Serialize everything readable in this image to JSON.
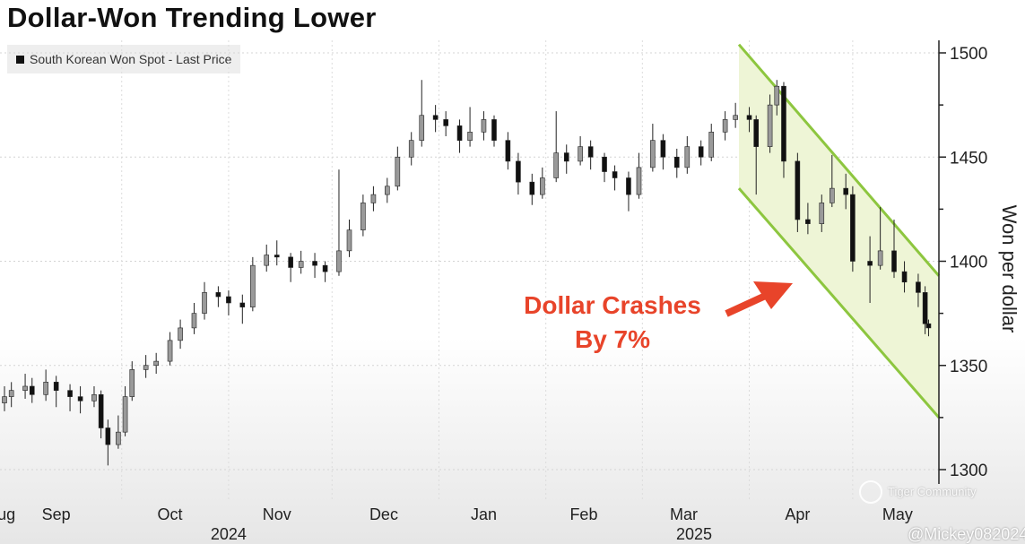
{
  "chart_data": {
    "type": "candlestick",
    "title": "Dollar-Won Trending Lower",
    "legend": [
      {
        "name": "South Korean Won Spot - Last Price",
        "color": "#111111"
      }
    ],
    "legend_placement": "top-left",
    "ylabel": "Won per dollar",
    "ylim": [
      1290,
      1505
    ],
    "yticks": [
      1300,
      1350,
      1400,
      1450,
      1500
    ],
    "xlim": [
      "2024-08-28",
      "2025-05-26"
    ],
    "grid": true,
    "month_labels": [
      {
        "label": "Aug",
        "date": "2024-08-27"
      },
      {
        "label": "Sep",
        "date": "2024-09-12"
      },
      {
        "label": "Oct",
        "date": "2024-10-15"
      },
      {
        "label": "Nov",
        "date": "2024-11-15"
      },
      {
        "label": "Dec",
        "date": "2024-12-16"
      },
      {
        "label": "Jan",
        "date": "2025-01-14"
      },
      {
        "label": "Feb",
        "date": "2025-02-12"
      },
      {
        "label": "Mar",
        "date": "2025-03-13"
      },
      {
        "label": "Apr",
        "date": "2025-04-15"
      },
      {
        "label": "May",
        "date": "2025-05-14"
      }
    ],
    "year_labels": [
      {
        "label": "2024",
        "date": "2024-11-01"
      },
      {
        "label": "2025",
        "date": "2025-03-16"
      }
    ],
    "candles_format": [
      "date",
      "open",
      "high",
      "low",
      "close"
    ],
    "candles": [
      [
        "2024-08-28",
        1332,
        1340,
        1328,
        1335
      ],
      [
        "2024-08-30",
        1335,
        1342,
        1330,
        1338
      ],
      [
        "2024-09-03",
        1338,
        1346,
        1334,
        1340
      ],
      [
        "2024-09-05",
        1340,
        1344,
        1332,
        1336
      ],
      [
        "2024-09-09",
        1336,
        1348,
        1333,
        1342
      ],
      [
        "2024-09-12",
        1342,
        1345,
        1330,
        1338
      ],
      [
        "2024-09-16",
        1338,
        1341,
        1328,
        1335
      ],
      [
        "2024-09-19",
        1335,
        1340,
        1327,
        1333
      ],
      [
        "2024-09-23",
        1333,
        1340,
        1330,
        1336
      ],
      [
        "2024-09-25",
        1336,
        1338,
        1315,
        1320
      ],
      [
        "2024-09-27",
        1320,
        1324,
        1302,
        1312
      ],
      [
        "2024-09-30",
        1312,
        1326,
        1310,
        1318
      ],
      [
        "2024-10-02",
        1318,
        1340,
        1316,
        1335
      ],
      [
        "2024-10-04",
        1335,
        1352,
        1333,
        1348
      ],
      [
        "2024-10-08",
        1348,
        1355,
        1344,
        1350
      ],
      [
        "2024-10-11",
        1350,
        1356,
        1346,
        1352
      ],
      [
        "2024-10-15",
        1352,
        1366,
        1350,
        1362
      ],
      [
        "2024-10-18",
        1362,
        1372,
        1358,
        1368
      ],
      [
        "2024-10-22",
        1368,
        1380,
        1365,
        1375
      ],
      [
        "2024-10-25",
        1375,
        1390,
        1372,
        1385
      ],
      [
        "2024-10-29",
        1385,
        1388,
        1378,
        1383
      ],
      [
        "2024-11-01",
        1383,
        1386,
        1374,
        1380
      ],
      [
        "2024-11-05",
        1380,
        1384,
        1370,
        1378
      ],
      [
        "2024-11-08",
        1378,
        1402,
        1376,
        1398
      ],
      [
        "2024-11-12",
        1398,
        1408,
        1395,
        1403
      ],
      [
        "2024-11-15",
        1403,
        1410,
        1398,
        1402
      ],
      [
        "2024-11-19",
        1402,
        1404,
        1390,
        1397
      ],
      [
        "2024-11-22",
        1397,
        1405,
        1394,
        1400
      ],
      [
        "2024-11-26",
        1400,
        1404,
        1392,
        1398
      ],
      [
        "2024-11-29",
        1398,
        1400,
        1390,
        1395
      ],
      [
        "2024-12-03",
        1395,
        1444,
        1393,
        1405
      ],
      [
        "2024-12-06",
        1405,
        1420,
        1402,
        1415
      ],
      [
        "2024-12-10",
        1415,
        1432,
        1412,
        1428
      ],
      [
        "2024-12-13",
        1428,
        1436,
        1424,
        1432
      ],
      [
        "2024-12-17",
        1432,
        1440,
        1428,
        1436
      ],
      [
        "2024-12-20",
        1436,
        1455,
        1434,
        1450
      ],
      [
        "2024-12-24",
        1450,
        1462,
        1446,
        1458
      ],
      [
        "2024-12-27",
        1458,
        1487,
        1455,
        1470
      ],
      [
        "2024-12-31",
        1470,
        1475,
        1462,
        1468
      ],
      [
        "2025-01-03",
        1468,
        1472,
        1460,
        1465
      ],
      [
        "2025-01-07",
        1465,
        1468,
        1452,
        1458
      ],
      [
        "2025-01-10",
        1458,
        1474,
        1455,
        1462
      ],
      [
        "2025-01-14",
        1462,
        1472,
        1458,
        1468
      ],
      [
        "2025-01-17",
        1468,
        1470,
        1455,
        1458
      ],
      [
        "2025-01-21",
        1458,
        1462,
        1444,
        1448
      ],
      [
        "2025-01-24",
        1448,
        1452,
        1432,
        1438
      ],
      [
        "2025-01-28",
        1438,
        1442,
        1427,
        1432
      ],
      [
        "2025-01-31",
        1432,
        1445,
        1430,
        1440
      ],
      [
        "2025-02-04",
        1440,
        1472,
        1438,
        1452
      ],
      [
        "2025-02-07",
        1452,
        1456,
        1442,
        1448
      ],
      [
        "2025-02-11",
        1448,
        1460,
        1446,
        1455
      ],
      [
        "2025-02-14",
        1455,
        1458,
        1444,
        1450
      ],
      [
        "2025-02-18",
        1450,
        1452,
        1438,
        1443
      ],
      [
        "2025-02-21",
        1443,
        1446,
        1434,
        1440
      ],
      [
        "2025-02-25",
        1440,
        1443,
        1424,
        1432
      ],
      [
        "2025-02-28",
        1432,
        1452,
        1430,
        1445
      ],
      [
        "2025-03-04",
        1445,
        1466,
        1443,
        1458
      ],
      [
        "2025-03-07",
        1458,
        1461,
        1444,
        1450
      ],
      [
        "2025-03-11",
        1450,
        1454,
        1440,
        1445
      ],
      [
        "2025-03-14",
        1445,
        1460,
        1442,
        1455
      ],
      [
        "2025-03-18",
        1455,
        1458,
        1446,
        1450
      ],
      [
        "2025-03-21",
        1450,
        1466,
        1448,
        1462
      ],
      [
        "2025-03-25",
        1462,
        1472,
        1458,
        1468
      ],
      [
        "2025-03-28",
        1468,
        1476,
        1464,
        1470
      ],
      [
        "2025-04-01",
        1470,
        1474,
        1462,
        1468
      ],
      [
        "2025-04-03",
        1468,
        1470,
        1432,
        1455
      ],
      [
        "2025-04-07",
        1455,
        1480,
        1452,
        1475
      ],
      [
        "2025-04-09",
        1475,
        1487,
        1470,
        1484
      ],
      [
        "2025-04-11",
        1484,
        1486,
        1440,
        1448
      ],
      [
        "2025-04-15",
        1448,
        1452,
        1414,
        1420
      ],
      [
        "2025-04-18",
        1420,
        1428,
        1413,
        1418
      ],
      [
        "2025-04-22",
        1418,
        1432,
        1414,
        1428
      ],
      [
        "2025-04-25",
        1428,
        1451,
        1426,
        1435
      ],
      [
        "2025-04-29",
        1435,
        1442,
        1425,
        1432
      ],
      [
        "2025-05-01",
        1432,
        1436,
        1395,
        1400
      ],
      [
        "2025-05-06",
        1400,
        1412,
        1380,
        1398
      ],
      [
        "2025-05-09",
        1398,
        1426,
        1396,
        1405
      ],
      [
        "2025-05-13",
        1405,
        1420,
        1392,
        1395
      ],
      [
        "2025-05-16",
        1395,
        1400,
        1385,
        1390
      ],
      [
        "2025-05-20",
        1390,
        1394,
        1378,
        1385
      ],
      [
        "2025-05-22",
        1385,
        1388,
        1365,
        1370
      ],
      [
        "2025-05-23",
        1370,
        1372,
        1364,
        1368
      ]
    ],
    "channel": {
      "upper": [
        [
          "2025-03-29",
          1504
        ],
        [
          "2025-05-26",
          1393
        ]
      ],
      "lower": [
        [
          "2025-03-29",
          1435
        ],
        [
          "2025-05-26",
          1325
        ]
      ],
      "line_color": "#8dc63f",
      "fill_color": "#eef5d6"
    },
    "annotation": {
      "lines": [
        "Dollar Crashes",
        "By 7%"
      ],
      "color": "#e8442a"
    },
    "up_color": "#9a9a9a",
    "down_color": "#111111"
  },
  "watermark": {
    "brand": "Tiger Community",
    "handle": "@Mickey082024"
  }
}
